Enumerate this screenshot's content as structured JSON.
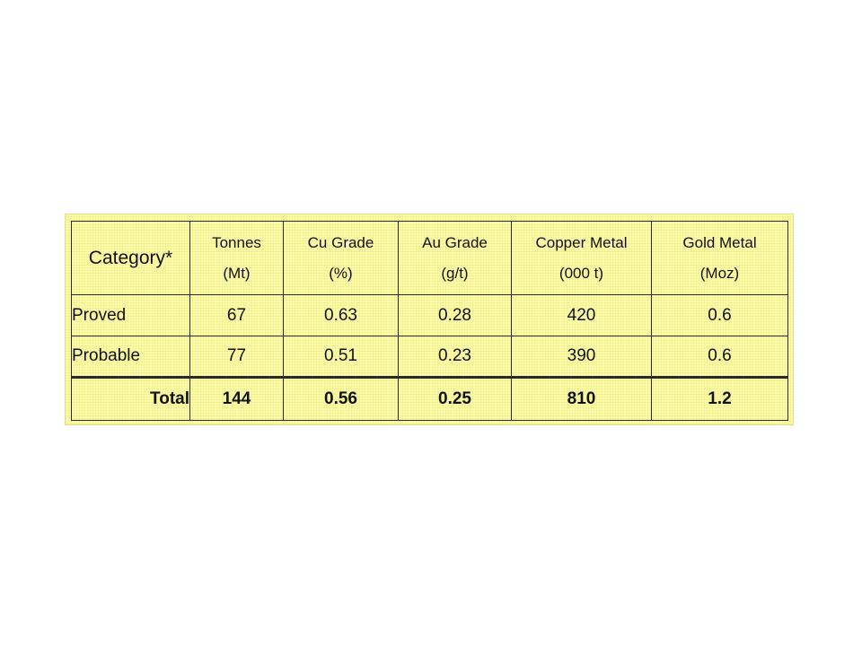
{
  "table": {
    "category_header": "Category*",
    "columns": [
      {
        "line1": "Tonnes",
        "line2": "(Mt)"
      },
      {
        "line1": "Cu Grade",
        "line2": "(%)"
      },
      {
        "line1": "Au Grade",
        "line2": "(g/t)"
      },
      {
        "line1": "Copper Metal",
        "line2": "(000 t)"
      },
      {
        "line1": "Gold Metal",
        "line2": "(Moz)"
      }
    ],
    "rows": [
      {
        "category": "Proved",
        "values": [
          "67",
          "0.63",
          "0.28",
          "420",
          "0.6"
        ]
      },
      {
        "category": "Probable",
        "values": [
          "77",
          "0.51",
          "0.23",
          "390",
          "0.6"
        ]
      }
    ],
    "total": {
      "category": "Total",
      "values": [
        "144",
        "0.56",
        "0.25",
        "810",
        "1.2"
      ]
    }
  },
  "colors": {
    "panel_background": "#fdfca6",
    "border": "#2b2b2b",
    "text": "#111111"
  }
}
